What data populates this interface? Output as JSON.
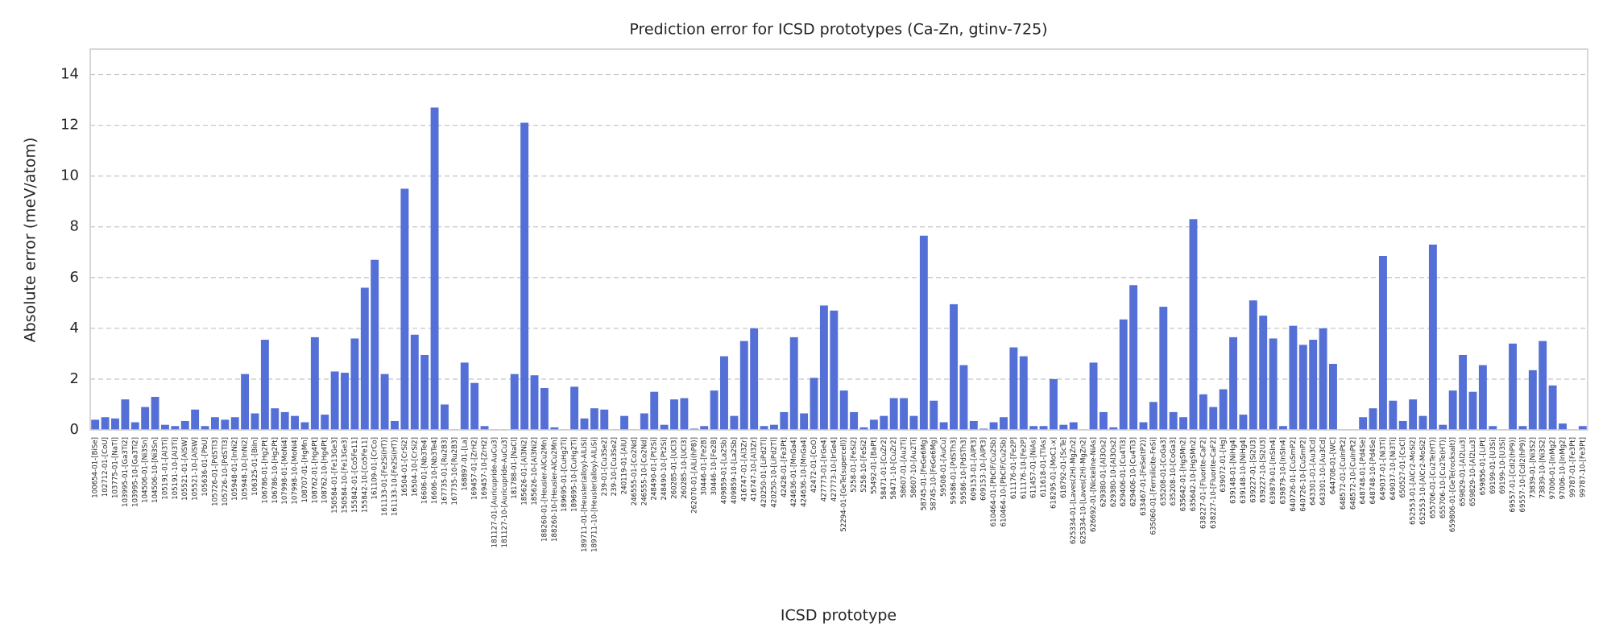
{
  "chart_data": {
    "type": "bar",
    "title": "Prediction error for ICSD prototypes (Ca-Zn, gtinv-725)",
    "x_label": "ICSD prototype",
    "y_label": "Absolute error (meV/atom)",
    "color": "#5470d6",
    "grid": true,
    "ylim": [
      0,
      15
    ],
    "yticks": [
      0,
      2,
      4,
      6,
      8,
      10,
      12,
      14
    ],
    "categories": [
      "100654-01-[BiSe]",
      "102712-01-[CoU]",
      "103775-01-[NaTl]",
      "103995-01-[Ga3Ti2]",
      "103995-10-[Ga3Ti2]",
      "104506-01-[Ni3Sn]",
      "104506-10-[Ni3Sn]",
      "105191-01-[Al3Ti]",
      "105191-10-[Al3Ti]",
      "105521-01-[AlSW]",
      "105521-10-[AlSW]",
      "105636-01-[PbU]",
      "105726-01-[PdSTl3]",
      "105726-10-[PdSTl3]",
      "105948-01-[InNi2]",
      "105948-10-[InNi2]",
      "106325-01-[BiIn]",
      "106786-01-[Hg2Pt]",
      "106786-10-[Hg2Pt]",
      "107998-01-[MoNi4]",
      "107998-10-[MoNi4]",
      "108707-01-[HgMn]",
      "108762-01-[Hg4Pt]",
      "108762-10-[Hg4Pt]",
      "150584-01-[Fe13Ge3]",
      "150584-10-[Fe13Ge3]",
      "155842-01-[Co5Fe11]",
      "155842-10-[Co5Fe11]",
      "161109-01-[CrCo]",
      "161133-01-[Fe2Si(HT)]",
      "161133-10-[Fe2Si(HT)]",
      "16504-01-[CrSi2]",
      "16504-10-[CrSi2]",
      "16606-01-[Nb3Te4]",
      "16606-10-[Nb3Te4]",
      "167735-01-[Ru2B3]",
      "167735-10-[Ru2B3]",
      "168897-01-[La]",
      "169457-01-[ZrH2]",
      "169457-10-[ZrH2]",
      "181127-01-[Auricupride-AuCu3]",
      "181127-10-[Auricupride-AuCu3]",
      "181788-01-[NaCl]",
      "185626-01-[Al3Ni2]",
      "185626-10-[Al3Ni2]",
      "188260-01-[Heusler-AlCu2Mn]",
      "188260-10-[Heusler-AlCu2Mn]",
      "189695-01-[CuHg2Ti]",
      "189695-10-[CuHg2Ti]",
      "189711-01-[Heusler(alloy)-AlLiSi]",
      "189711-10-[Heusler(alloy)-AlLiSi]",
      "239-01-[Cu3Se2]",
      "239-10-[Cu3Se2]",
      "240119-01-[AlU]",
      "246555-01-[Co2Nd]",
      "246555-10-[Co2Nd]",
      "248490-01-[Pt2Si]",
      "248490-10-[Pt2Si]",
      "260285-01-[UCl3]",
      "260285-10-[UCl3]",
      "262070-01-[AlLi(hP8)]",
      "30446-01-[Fe2B]",
      "30446-10-[Fe2B]",
      "409859-01-[La2Sb]",
      "409859-10-[La2Sb]",
      "416747-01-[Al3Zr]",
      "416747-10-[Al3Zr]",
      "420250-01-[LiPd2Tl]",
      "420250-10-[LiPd2Tl]",
      "42428-01-[Fe3Pt]",
      "424636-01-[MnGa4]",
      "424636-10-[MnGa4]",
      "42472-01-[CoO]",
      "427773-01-[IrGe4]",
      "427773-10-[IrGe4]",
      "52294-01-[GeTe(supercell)]",
      "5258-01-[FeSi2]",
      "5258-10-[FeSi2]",
      "55492-01-[BaPt]",
      "58471-01-[CuZr2]",
      "58471-10-[CuZr2]",
      "58607-01-[Au2Ti]",
      "58607-10-[Au2Ti]",
      "58745-01-[FeGe6Mg]",
      "58745-10-[FeGe6Mg]",
      "59508-01-[AuCu]",
      "59586-01-[PdSTh3]",
      "59586-10-[PdSTh3]",
      "609153-01-[AlPt3]",
      "609153-10-[AlPt3]",
      "610464-01-[PbClF/Cu2Sb]",
      "610464-10-[PbClF/Cu2Sb]",
      "611176-01-[Fe2P]",
      "611176-10-[Fe2P]",
      "611457-01-[NiAs]",
      "611618-01-[TlAs]",
      "618295-01-[MoC1-x]",
      "618792-01-[ScTe]",
      "625334-01-[Laves(2H)-MgZn2]",
      "625334-10-[Laves(2H)-MgZn2]",
      "626692-01-[Nickeline-NiAs]",
      "629380-01-[Al3Os2]",
      "629380-10-[Al3Os2]",
      "629406-01-[Cu4Ti3]",
      "629406-10-[Cu4Ti3]",
      "633467-01-[FeSe(tP2)]",
      "635060-01-[Ferrsilicite-FeSi]",
      "635208-01-[CoGa3]",
      "635208-10-[CoGa3]",
      "635642-01-[HgSMn2]",
      "635642-10-[HgSMn2]",
      "638227-01-[Fluorite-CaF2]",
      "638227-10-[Fluorite-CaF2]",
      "639072-01-[Hg]",
      "639148-01-[NiHg4]",
      "639148-10-[NiHg4]",
      "639227-01-[Si2U3]",
      "639227-10-[Si2U3]",
      "639879-01-[InSIn4]",
      "639879-10-[InSIn4]",
      "640726-01-[CuSmP2]",
      "640726-10-[CuSmP2]",
      "643301-01-[Au3Cd]",
      "643301-10-[Au3Cd]",
      "644708-01-[WC]",
      "648572-01-[CuInPt2]",
      "648572-10-[CuInPt2]",
      "648748-01-[Pd4Se]",
      "648748-10-[Pd4Se]",
      "649037-01-[Ni3Ti]",
      "649037-10-[Ni3Ti]",
      "650527-01-[CsCl]",
      "652553-01-[AlCr2-MoSi2]",
      "652553-10-[AlCr2-MoSi2]",
      "655706-01-[Cu2Te(HT)]",
      "655706-10-[Cu2Te(HT)]",
      "659806-01-[GeTe(rocksalt)]",
      "659829-01-[Al2Lu3]",
      "659829-10-[Al2Lu3]",
      "659856-01-[LiPt]",
      "69199-01-[U3Si]",
      "69199-10-[U3Si]",
      "69557-01-[CdI2(hP9)]",
      "69557-10-[CdI2(hP9)]",
      "73839-01-[Ni3S2]",
      "73839-10-[Ni3S2]",
      "97006-01-[InMg2]",
      "97006-10-[InMg2]",
      "99787-01-[Fe3Pt]",
      "99787-10-[Fe3Pt]"
    ],
    "values": [
      0.4,
      0.5,
      0.45,
      1.2,
      0.3,
      0.9,
      1.3,
      0.2,
      0.15,
      0.35,
      0.8,
      0.15,
      0.5,
      0.4,
      0.5,
      2.2,
      0.65,
      3.55,
      0.85,
      0.7,
      0.55,
      0.3,
      3.65,
      0.6,
      2.3,
      2.25,
      3.6,
      5.6,
      6.7,
      2.2,
      0.35,
      9.5,
      3.75,
      2.95,
      12.7,
      1.0,
      0.02,
      2.65,
      1.85,
      0.15,
      0.02,
      0.02,
      2.2,
      12.1,
      2.15,
      1.65,
      0.1,
      0.02,
      1.7,
      0.45,
      0.85,
      0.8,
      0.02,
      0.55,
      0.02,
      0.65,
      1.5,
      0.2,
      1.2,
      1.25,
      0.05,
      0.15,
      1.55,
      2.9,
      0.55,
      3.5,
      4.0,
      0.15,
      0.2,
      0.7,
      3.65,
      0.65,
      2.05,
      4.9,
      4.7,
      1.55,
      0.7,
      0.1,
      0.4,
      0.55,
      1.25,
      1.25,
      0.55,
      7.65,
      1.15,
      0.3,
      4.95,
      2.55,
      0.35,
      0.05,
      0.3,
      0.5,
      3.25,
      2.9,
      0.15,
      0.15,
      2.0,
      0.2,
      0.3,
      0.02,
      2.65,
      0.7,
      0.1,
      4.35,
      5.7,
      0.3,
      1.1,
      4.85,
      0.7,
      0.5,
      8.3,
      1.4,
      0.9,
      1.6,
      3.65,
      0.6,
      5.1,
      4.5,
      3.6,
      0.15,
      4.1,
      3.35,
      3.55,
      4.0,
      2.6,
      0.02,
      0.02,
      0.5,
      0.85,
      6.85,
      1.15,
      0.35,
      1.2,
      0.55,
      7.3,
      0.2,
      1.55,
      2.95,
      1.5,
      2.55,
      0.15,
      0.02,
      3.4,
      0.15,
      2.35,
      3.5,
      1.75,
      0.25,
      0.02,
      0.15
    ]
  }
}
